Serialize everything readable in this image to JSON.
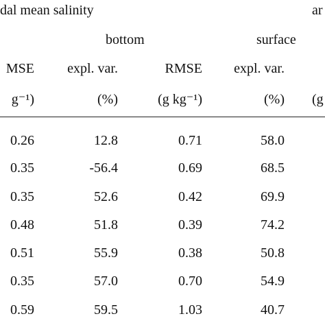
{
  "table": {
    "caption_left": "dal mean salinity",
    "caption_right": "ar",
    "group_headers": [
      "bottom",
      "surface"
    ],
    "column_headers": [
      "MSE",
      "expl. var.",
      "RMSE",
      "expl. var."
    ],
    "units": [
      "g⁻¹)",
      "(%)",
      "(g kg⁻¹)",
      "(%)",
      "(g"
    ],
    "rows": [
      [
        "0.26",
        "12.8",
        "0.71",
        "58.0"
      ],
      [
        "0.35",
        "-56.4",
        "0.69",
        "68.5"
      ],
      [
        "0.35",
        "52.6",
        "0.42",
        "69.9"
      ],
      [
        "0.48",
        "51.8",
        "0.39",
        "74.2"
      ],
      [
        "0.51",
        "55.9",
        "0.38",
        "50.8"
      ],
      [
        "0.35",
        "57.0",
        "0.70",
        "54.9"
      ],
      [
        "0.59",
        "59.5",
        "1.03",
        "40.7"
      ]
    ]
  }
}
